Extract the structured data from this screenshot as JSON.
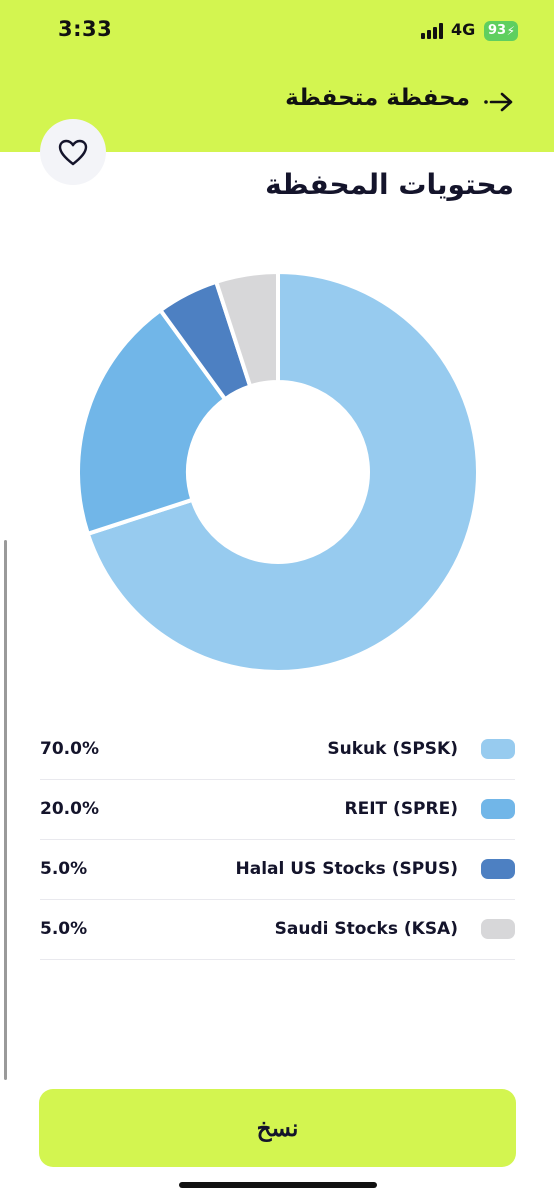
{
  "status_bar": {
    "time": "3:33",
    "network": "4G",
    "battery": "93"
  },
  "nav": {
    "title": "محفظة متحفظة"
  },
  "section": {
    "title": "محتويات المحفظة"
  },
  "holdings": [
    {
      "label": "Sukuk (SPSK)",
      "percent": "70.0%",
      "value": 70.0,
      "color": "#97cbef"
    },
    {
      "label": "REIT (SPRE)",
      "percent": "20.0%",
      "value": 20.0,
      "color": "#71b6e8"
    },
    {
      "label": "Halal US Stocks (SPUS)",
      "percent": "5.0%",
      "value": 5.0,
      "color": "#4d80c2"
    },
    {
      "label": "Saudi Stocks (KSA)",
      "percent": "5.0%",
      "value": 5.0,
      "color": "#d7d7d9"
    }
  ],
  "chart_data": {
    "type": "pie",
    "categories": [
      "Sukuk (SPSK)",
      "REIT (SPRE)",
      "Halal US Stocks (SPUS)",
      "Saudi Stocks (KSA)"
    ],
    "values": [
      70.0,
      20.0,
      5.0,
      5.0
    ],
    "colors": [
      "#97cbef",
      "#71b6e8",
      "#4d80c2",
      "#d7d7d9"
    ],
    "donut": true,
    "legend": "bottom"
  },
  "actions": {
    "copy_label": "نسخ"
  },
  "colors": {
    "accent": "#d3f550",
    "text": "#14142b"
  },
  "icons": {
    "back": "arrow-right-icon",
    "favorite": "heart-icon"
  }
}
